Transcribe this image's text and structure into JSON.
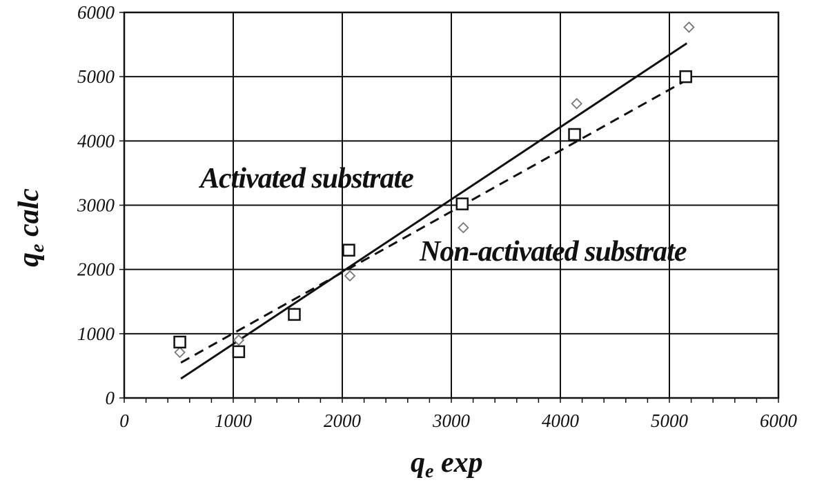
{
  "chart_data": {
    "type": "scatter",
    "xlabel": {
      "main": "q",
      "sub": "e",
      "rest": " exp"
    },
    "ylabel": {
      "main": "q",
      "sub": "e",
      "rest": " calc"
    },
    "xlim": [
      0,
      6000
    ],
    "ylim": [
      0,
      6000
    ],
    "x_ticks": [
      0,
      1000,
      2000,
      3000,
      4000,
      5000,
      6000
    ],
    "y_ticks": [
      0,
      1000,
      2000,
      3000,
      4000,
      5000,
      6000
    ],
    "grid": true,
    "annotations": [
      {
        "id": "activated",
        "text": "Activated substrate"
      },
      {
        "id": "non_activated",
        "text": "Non-activated substrate"
      }
    ],
    "series": [
      {
        "marker": "diamond",
        "color": "#777777",
        "points": [
          [
            510,
            710
          ],
          [
            1050,
            900
          ],
          [
            1560,
            1320
          ],
          [
            2070,
            1900
          ],
          [
            3110,
            2650
          ],
          [
            4150,
            4580
          ],
          [
            5180,
            5770
          ]
        ]
      },
      {
        "marker": "square",
        "color": "#111111",
        "points": [
          [
            510,
            870
          ],
          [
            1050,
            720
          ],
          [
            1560,
            1300
          ],
          [
            2060,
            2300
          ],
          [
            3100,
            3020
          ],
          [
            4130,
            4100
          ],
          [
            5150,
            5000
          ]
        ]
      }
    ],
    "fit_lines": [
      {
        "style": "solid",
        "color": "#111111",
        "from": [
          520,
          300
        ],
        "to": [
          5160,
          5520
        ]
      },
      {
        "style": "dashed",
        "color": "#111111",
        "from": [
          520,
          550
        ],
        "to": [
          5160,
          4950
        ]
      }
    ]
  }
}
